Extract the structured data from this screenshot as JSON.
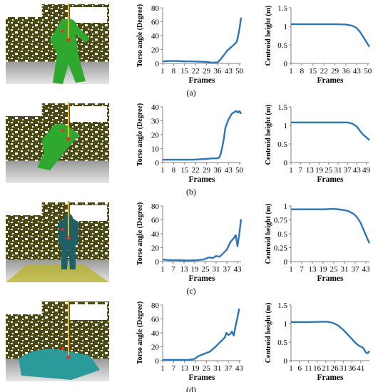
{
  "colors": {
    "line": "#2e75b6",
    "scene_wall": "#4a4a12",
    "scene_floor": "#b8b8b8",
    "skeleton_line": "#f2b01e",
    "joint": "#e83030",
    "person_green": "#2fa82f",
    "person_teal": "#1f5f66",
    "person_cyan": "#2a9a9a"
  },
  "panels": [
    {
      "label": "(a)",
      "person_color": "person_green",
      "chart_data": [
        {
          "type": "line",
          "ylabel": "Torso angle (Degree)",
          "xlabel": "Frames",
          "ylim": [
            0,
            80
          ],
          "yticks": [
            "0",
            "20",
            "40",
            "60",
            "80"
          ],
          "xticks": [
            "1",
            "8",
            "15",
            "22",
            "29",
            "36",
            "43",
            "50"
          ],
          "xrange": [
            1,
            51
          ],
          "x": [
            1,
            5,
            10,
            15,
            20,
            25,
            30,
            33,
            36,
            38,
            40,
            42,
            44,
            46,
            47,
            48,
            49,
            50,
            51
          ],
          "y": [
            3,
            3.5,
            3.5,
            3,
            3,
            2.5,
            2,
            1,
            1.5,
            6,
            12,
            18,
            22,
            26,
            28,
            30,
            38,
            50,
            66
          ]
        },
        {
          "type": "line",
          "ylabel": "Centroid height (m)",
          "xlabel": "Frames",
          "ylim": [
            0,
            1.5
          ],
          "yticks": [
            "0",
            "0.5",
            "1",
            "1.5"
          ],
          "xticks": [
            "1",
            "8",
            "15",
            "22",
            "29",
            "36",
            "43",
            "50"
          ],
          "xrange": [
            1,
            51
          ],
          "x": [
            1,
            10,
            20,
            30,
            36,
            40,
            43,
            45,
            47,
            49,
            51
          ],
          "y": [
            1.06,
            1.06,
            1.06,
            1.06,
            1.05,
            1.02,
            0.95,
            0.85,
            0.72,
            0.58,
            0.45
          ]
        }
      ]
    },
    {
      "label": "(b)",
      "person_color": "person_green",
      "chart_data": [
        {
          "type": "line",
          "ylabel": "Torso angle (Degree)",
          "xlabel": "Frames",
          "ylim": [
            0,
            40
          ],
          "yticks": [
            "0",
            "10",
            "20",
            "30",
            "40"
          ],
          "xticks": [
            "1",
            "8",
            "15",
            "22",
            "29",
            "36",
            "43",
            "50"
          ],
          "xrange": [
            1,
            51
          ],
          "x": [
            1,
            10,
            20,
            28,
            33,
            36,
            37,
            38,
            39,
            40,
            41,
            43,
            45,
            47,
            48,
            49,
            50,
            51
          ],
          "y": [
            2,
            2,
            2,
            2.5,
            3,
            3,
            3.5,
            6,
            11,
            17,
            25,
            31,
            35,
            36.5,
            37,
            36,
            37,
            35
          ]
        },
        {
          "type": "line",
          "ylabel": "Centroid height (m)",
          "xlabel": "Frames",
          "ylim": [
            0,
            1.5
          ],
          "yticks": [
            "0",
            "0.5",
            "1",
            "1.5"
          ],
          "xticks": [
            "1",
            "7",
            "13",
            "19",
            "25",
            "31",
            "37",
            "43",
            "49"
          ],
          "xrange": [
            1,
            51
          ],
          "x": [
            1,
            10,
            20,
            30,
            37,
            40,
            43,
            45,
            47,
            49,
            51
          ],
          "y": [
            1.08,
            1.08,
            1.08,
            1.08,
            1.08,
            1.05,
            0.97,
            0.85,
            0.75,
            0.68,
            0.6
          ]
        }
      ]
    },
    {
      "label": "(c)",
      "person_color": "person_teal",
      "chart_data": [
        {
          "type": "line",
          "ylabel": "Torso angle (Degree)",
          "xlabel": "Frames",
          "ylim": [
            0,
            80
          ],
          "yticks": [
            "0",
            "20",
            "40",
            "60",
            "80"
          ],
          "xticks": [
            "1",
            "7",
            "13",
            "19",
            "25",
            "31",
            "37",
            "43"
          ],
          "xrange": [
            1,
            45
          ],
          "x": [
            1,
            5,
            10,
            15,
            20,
            24,
            27,
            29,
            31,
            33,
            35,
            37,
            39,
            41,
            42,
            43,
            44,
            45
          ],
          "y": [
            3,
            2,
            2,
            1.5,
            2,
            3,
            6,
            5,
            8,
            7,
            12,
            17,
            28,
            34,
            38,
            22,
            40,
            61
          ]
        },
        {
          "type": "line",
          "ylabel": "Centroid height (m)",
          "xlabel": "Frames",
          "ylim": [
            0,
            1
          ],
          "yticks": [
            "0",
            "0.25",
            "0.5",
            "0.75",
            "1"
          ],
          "xticks": [
            "1",
            "7",
            "13",
            "19",
            "25",
            "31",
            "37",
            "43"
          ],
          "xrange": [
            1,
            45
          ],
          "x": [
            1,
            10,
            20,
            25,
            30,
            33,
            36,
            38,
            40,
            42,
            44,
            45
          ],
          "y": [
            0.94,
            0.94,
            0.94,
            0.95,
            0.93,
            0.91,
            0.86,
            0.8,
            0.7,
            0.55,
            0.4,
            0.33
          ]
        }
      ]
    },
    {
      "label": "(d)",
      "person_color": "person_cyan",
      "chart_data": [
        {
          "type": "line",
          "ylabel": "Torso angle (Degree)",
          "xlabel": "Frames",
          "ylim": [
            0,
            80
          ],
          "yticks": [
            "0",
            "20",
            "40",
            "60",
            "80"
          ],
          "xticks": [
            "1",
            "7",
            "13",
            "19",
            "25",
            "31",
            "37",
            "43"
          ],
          "xrange": [
            1,
            44
          ],
          "x": [
            1,
            5,
            10,
            15,
            18,
            21,
            24,
            27,
            30,
            33,
            35,
            36,
            37,
            38,
            39,
            40,
            41,
            42,
            43
          ],
          "y": [
            1,
            1,
            1,
            1,
            2,
            7,
            10,
            13,
            20,
            28,
            33,
            40,
            37,
            38,
            42,
            36,
            50,
            62,
            75
          ]
        },
        {
          "type": "line",
          "ylabel": "Centroid height (m)",
          "xlabel": "Frames",
          "ylim": [
            0,
            1.5
          ],
          "yticks": [
            "0",
            "0.5",
            "1",
            "1.5"
          ],
          "xticks": [
            "1",
            "6",
            "11",
            "16",
            "21",
            "26",
            "31",
            "36",
            "41"
          ],
          "xrange": [
            1,
            46
          ],
          "x": [
            1,
            10,
            18,
            22,
            25,
            28,
            31,
            34,
            36,
            38,
            40,
            42,
            43,
            44,
            45,
            46
          ],
          "y": [
            1.04,
            1.04,
            1.05,
            1.05,
            1.02,
            0.95,
            0.83,
            0.68,
            0.58,
            0.48,
            0.4,
            0.36,
            0.3,
            0.22,
            0.2,
            0.26
          ]
        }
      ]
    }
  ]
}
